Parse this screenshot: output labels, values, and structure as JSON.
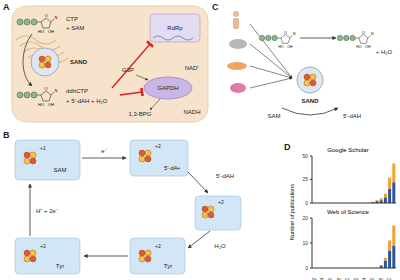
{
  "panels": {
    "A": {
      "label": "A",
      "substrate": "CTP",
      "cosubstrate": "+ SAM",
      "enzyme": "SAND",
      "product": "ddhCTP",
      "byproducts": "+ 5'-dAH + H₂O",
      "targets": [
        "RdRp",
        "GAPDH"
      ],
      "metabolites": [
        "G3P",
        "NAD⁺",
        "NADH",
        "1,3-BPG"
      ]
    },
    "B": {
      "label": "B",
      "cofactor": "SAM",
      "radical": "5'-dA•",
      "released": "5'-dAH",
      "residue": "Tyr",
      "water": "H₂O",
      "reductant": "H⁺ + 2e⁻",
      "electron": "e⁻",
      "charges": [
        "+1",
        "+2"
      ]
    },
    "C": {
      "label": "C",
      "enzyme": "SAND",
      "cofactor": "SAM",
      "released": "5'-dAH",
      "water": "+ H₂O"
    },
    "D": {
      "label": "D",
      "ylabel": "Number of publications"
    },
    "structure": {
      "base": "N",
      "ring_oxygen": "O",
      "hydroxyls": [
        "HO",
        "OH"
      ]
    }
  },
  "chart_data": [
    {
      "type": "bar",
      "title": "Google Scholar",
      "stacked": true,
      "tick_labels": "y",
      "categories": [
        "2002",
        null,
        "2004",
        null,
        "2006",
        null,
        "2008",
        null,
        "2010",
        null,
        "2012",
        null,
        "2014",
        null,
        "2016",
        null,
        "2018",
        null,
        "2020",
        null
      ],
      "series": [
        {
          "color": "#2f5597",
          "values": [
            0,
            0,
            0,
            0,
            0,
            0,
            0,
            0,
            0,
            0,
            0,
            0,
            0,
            0,
            1,
            2,
            3,
            6,
            15,
            22
          ]
        },
        {
          "color": "#f0a030",
          "values": [
            0,
            0,
            0,
            0,
            0,
            0,
            0,
            0,
            0,
            0,
            0,
            0,
            0,
            0,
            0,
            1,
            2,
            4,
            12,
            20
          ]
        }
      ],
      "ylim": [
        0,
        50
      ],
      "yticks": [
        0,
        25,
        50
      ]
    },
    {
      "type": "bar",
      "title": "Web of Science",
      "stacked": true,
      "categories": [
        "2002",
        null,
        "2004",
        null,
        "2006",
        null,
        "2008",
        null,
        "2010",
        null,
        "2012",
        null,
        "2014",
        null,
        "2016",
        null,
        "2018",
        null,
        "2020",
        null
      ],
      "series": [
        {
          "color": "#2f5597",
          "values": [
            0,
            0,
            0,
            0,
            0,
            0,
            0,
            0,
            0,
            0,
            0,
            0,
            0,
            0,
            0,
            0,
            1,
            3,
            7,
            9
          ]
        },
        {
          "color": "#f0a030",
          "values": [
            0,
            0,
            0,
            0,
            0,
            0,
            0,
            0,
            0,
            0,
            0,
            0,
            0,
            0,
            0,
            0,
            0,
            1,
            4,
            8
          ]
        }
      ],
      "ylim": [
        0,
        20
      ],
      "yticks": [
        0,
        10,
        20
      ]
    }
  ]
}
